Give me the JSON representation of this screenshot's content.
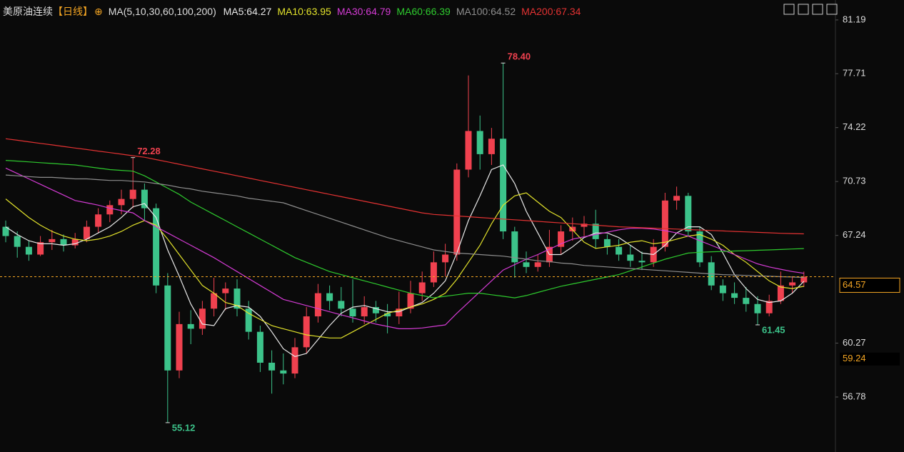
{
  "header": {
    "symbol": "美原油连续",
    "period": "【日线】",
    "indicator": "MA(5,10,30,60,100,200)"
  },
  "chart_data": {
    "type": "candlestick",
    "ylim": [
      53.22,
      82.48
    ],
    "yticks": [
      56.78,
      60.27,
      67.24,
      70.73,
      74.22,
      77.71,
      81.19
    ],
    "up_color": "#f0414f",
    "down_color": "#3cc38a",
    "open": [
      67.8,
      67.2,
      66.5,
      66.0,
      66.8,
      67.0,
      66.6,
      67.0,
      67.8,
      68.6,
      69.2,
      69.6,
      70.2,
      69.0,
      64.0,
      58.5,
      61.5,
      61.2,
      62.5,
      63.5,
      63.8,
      62.5,
      61.0,
      59.0,
      58.5,
      58.3,
      60.0,
      62.0,
      63.5,
      63.0,
      62.5,
      62.0,
      62.6,
      62.2,
      62.0,
      62.5,
      63.5,
      64.2,
      65.5,
      66.0,
      71.5,
      74.0,
      72.5,
      73.5,
      67.5,
      65.5,
      65.2,
      65.5,
      66.5,
      67.5,
      67.8,
      68.0,
      67.0,
      66.5,
      66.0,
      65.6,
      65.5,
      66.5,
      69.5,
      69.8,
      67.5,
      65.5,
      64.0,
      63.5,
      63.2,
      62.8,
      62.2,
      63.0,
      64.0,
      64.2
    ],
    "high": [
      68.2,
      67.5,
      66.9,
      67.2,
      67.6,
      67.3,
      67.4,
      68.2,
      69.0,
      69.5,
      70.2,
      72.28,
      70.6,
      69.3,
      64.8,
      62.3,
      62.4,
      63.0,
      64.5,
      64.2,
      64.4,
      63.0,
      61.4,
      59.8,
      59.6,
      60.6,
      62.6,
      64.1,
      64.0,
      63.9,
      64.4,
      63.3,
      63.0,
      62.8,
      63.6,
      64.3,
      64.9,
      66.2,
      66.7,
      71.9,
      77.6,
      75.0,
      74.2,
      78.4,
      67.8,
      66.2,
      66.0,
      67.6,
      67.9,
      68.4,
      68.5,
      68.9,
      67.3,
      67.0,
      66.6,
      66.2,
      67.0,
      70.0,
      70.4,
      70.0,
      67.8,
      65.9,
      64.4,
      64.2,
      63.9,
      63.3,
      63.4,
      64.9,
      64.6,
      64.9
    ],
    "low": [
      66.8,
      65.8,
      65.6,
      65.9,
      66.3,
      66.2,
      66.4,
      66.8,
      67.4,
      68.1,
      68.6,
      69.0,
      68.2,
      63.5,
      55.12,
      58.0,
      60.2,
      60.8,
      62.0,
      62.4,
      62.0,
      60.5,
      58.4,
      57.0,
      57.6,
      58.0,
      59.6,
      61.6,
      62.4,
      62.0,
      61.6,
      61.5,
      61.6,
      60.9,
      61.5,
      62.2,
      63.0,
      63.9,
      64.6,
      65.6,
      71.0,
      71.5,
      71.8,
      67.0,
      64.5,
      64.8,
      64.9,
      65.2,
      66.0,
      66.9,
      67.2,
      66.4,
      66.0,
      65.6,
      65.2,
      65.0,
      65.2,
      66.2,
      68.9,
      67.2,
      65.2,
      63.7,
      63.0,
      62.8,
      62.3,
      61.45,
      62.0,
      62.8,
      63.5,
      63.9
    ],
    "close": [
      67.2,
      66.5,
      66.0,
      66.8,
      67.0,
      66.6,
      67.0,
      67.8,
      68.6,
      69.2,
      69.6,
      70.2,
      69.0,
      64.0,
      58.5,
      61.5,
      61.2,
      62.5,
      63.5,
      63.8,
      62.5,
      61.0,
      59.0,
      58.5,
      58.3,
      60.0,
      62.0,
      63.5,
      63.0,
      62.5,
      62.0,
      62.6,
      62.2,
      62.0,
      62.5,
      63.5,
      64.2,
      65.5,
      66.0,
      71.5,
      74.0,
      72.5,
      73.5,
      67.5,
      65.5,
      65.2,
      65.5,
      66.5,
      67.5,
      67.8,
      68.0,
      67.0,
      66.5,
      66.0,
      65.6,
      65.5,
      66.5,
      69.5,
      69.8,
      67.5,
      65.5,
      64.0,
      63.5,
      63.2,
      62.8,
      62.2,
      63.0,
      64.0,
      64.2,
      64.57
    ],
    "series": [
      {
        "name": "MA5:64.27",
        "color": "#e8e8e8",
        "values": [
          67.8,
          67.3,
          66.9,
          66.7,
          66.7,
          66.6,
          66.7,
          67.0,
          67.4,
          67.8,
          68.4,
          69.1,
          69.3,
          68.4,
          66.3,
          64.6,
          62.8,
          61.5,
          61.4,
          62.5,
          62.7,
          62.6,
          62.0,
          61.0,
          59.9,
          59.4,
          59.6,
          60.5,
          61.4,
          62.2,
          62.6,
          62.7,
          62.5,
          62.3,
          62.3,
          62.6,
          62.9,
          63.5,
          64.3,
          66.1,
          68.2,
          69.8,
          71.5,
          71.8,
          70.6,
          68.8,
          67.4,
          66.0,
          66.0,
          66.5,
          67.1,
          67.4,
          67.4,
          67.1,
          66.6,
          66.1,
          66.0,
          66.6,
          67.4,
          67.8,
          67.8,
          67.3,
          66.1,
          64.7,
          63.8,
          63.1,
          62.9,
          63.0,
          63.5,
          64.27
        ]
      },
      {
        "name": "MA10:63.95",
        "color": "#e3e32b",
        "values": [
          69.6,
          69.0,
          68.4,
          67.9,
          67.5,
          67.2,
          67.0,
          66.9,
          67.0,
          67.2,
          67.5,
          67.9,
          68.2,
          67.9,
          67.0,
          66.0,
          65.0,
          64.0,
          63.5,
          62.9,
          62.7,
          62.2,
          61.8,
          61.4,
          61.2,
          61.0,
          60.8,
          60.7,
          60.6,
          60.6,
          61.0,
          61.4,
          61.8,
          62.2,
          62.4,
          62.6,
          62.8,
          63.1,
          63.5,
          64.4,
          65.5,
          66.6,
          68.0,
          69.2,
          69.8,
          70.0,
          69.4,
          68.8,
          68.4,
          67.6,
          66.8,
          66.4,
          66.5,
          66.6,
          66.8,
          66.9,
          66.7,
          66.8,
          67.0,
          67.2,
          67.3,
          67.0,
          66.6,
          66.0,
          65.5,
          64.9,
          64.3,
          63.9,
          63.8,
          63.95
        ]
      },
      {
        "name": "MA30:64.79",
        "color": "#d43bd4",
        "values": [
          71.6,
          71.25,
          70.9,
          70.55,
          70.2,
          69.85,
          69.5,
          69.35,
          69.2,
          69.0,
          68.85,
          68.7,
          68.2,
          67.8,
          67.4,
          67.0,
          66.6,
          66.2,
          65.8,
          65.35,
          64.9,
          64.45,
          64.0,
          63.55,
          63.1,
          62.9,
          62.7,
          62.5,
          62.3,
          62.1,
          61.9,
          61.7,
          61.5,
          61.35,
          61.2,
          61.2,
          61.25,
          61.35,
          61.45,
          62.2,
          62.9,
          63.6,
          64.3,
          65.0,
          65.35,
          65.7,
          66.0,
          66.35,
          66.7,
          67.0,
          67.15,
          67.3,
          67.45,
          67.6,
          67.7,
          67.7,
          67.65,
          67.55,
          67.4,
          67.2,
          66.9,
          66.6,
          66.3,
          66.0,
          65.7,
          65.4,
          65.2,
          65.05,
          64.9,
          64.79
        ]
      },
      {
        "name": "MA60:66.39",
        "color": "#2ecb2e",
        "values": [
          72.1,
          72.05,
          72.0,
          71.95,
          71.9,
          71.85,
          71.8,
          71.7,
          71.6,
          71.5,
          71.45,
          71.4,
          71.1,
          70.7,
          70.3,
          69.9,
          69.4,
          69.0,
          68.6,
          68.2,
          67.8,
          67.4,
          67.0,
          66.6,
          66.2,
          65.8,
          65.5,
          65.2,
          64.9,
          64.7,
          64.5,
          64.3,
          64.1,
          63.9,
          63.7,
          63.5,
          63.35,
          63.2,
          63.3,
          63.4,
          63.5,
          63.5,
          63.4,
          63.3,
          63.2,
          63.35,
          63.55,
          63.75,
          63.95,
          64.1,
          64.25,
          64.4,
          64.55,
          64.7,
          64.95,
          65.2,
          65.45,
          65.7,
          65.9,
          66.1,
          66.15,
          66.18,
          66.2,
          66.23,
          66.25,
          66.28,
          66.3,
          66.33,
          66.36,
          66.39
        ]
      },
      {
        "name": "MA100:64.52",
        "color": "#8e8e8e",
        "values": [
          71.15,
          71.1,
          71.05,
          71.0,
          71.0,
          70.95,
          70.9,
          70.9,
          70.85,
          70.8,
          70.8,
          70.75,
          70.7,
          70.6,
          70.5,
          70.35,
          70.25,
          70.1,
          70.0,
          69.9,
          69.8,
          69.65,
          69.55,
          69.45,
          69.35,
          69.1,
          68.85,
          68.6,
          68.35,
          68.1,
          67.85,
          67.6,
          67.35,
          67.1,
          66.9,
          66.7,
          66.5,
          66.3,
          66.2,
          66.1,
          66.05,
          66.0,
          65.95,
          65.9,
          65.8,
          65.7,
          65.6,
          65.55,
          65.45,
          65.4,
          65.3,
          65.25,
          65.2,
          65.15,
          65.1,
          65.05,
          65.0,
          64.95,
          64.9,
          64.85,
          64.8,
          64.75,
          64.7,
          64.68,
          64.65,
          64.62,
          64.6,
          64.57,
          64.55,
          64.52
        ]
      },
      {
        "name": "MA200:67.34",
        "color": "#e33232",
        "values": [
          73.5,
          73.4,
          73.3,
          73.2,
          73.1,
          73.0,
          72.9,
          72.8,
          72.7,
          72.6,
          72.5,
          72.4,
          72.3,
          72.15,
          72.0,
          71.85,
          71.7,
          71.55,
          71.4,
          71.25,
          71.1,
          70.95,
          70.8,
          70.65,
          70.5,
          70.35,
          70.2,
          70.05,
          69.9,
          69.75,
          69.6,
          69.45,
          69.3,
          69.15,
          69.0,
          68.85,
          68.7,
          68.6,
          68.55,
          68.5,
          68.45,
          68.4,
          68.35,
          68.3,
          68.25,
          68.2,
          68.15,
          68.1,
          68.05,
          68.0,
          67.95,
          67.9,
          67.85,
          67.8,
          67.77,
          67.74,
          67.71,
          67.68,
          67.65,
          67.62,
          67.59,
          67.56,
          67.53,
          67.5,
          67.47,
          67.44,
          67.41,
          67.38,
          67.36,
          67.34
        ]
      }
    ],
    "annotations": [
      {
        "label": "78.40",
        "value": 78.4,
        "color": "#f0414f"
      },
      {
        "label": "72.28",
        "value": 72.28,
        "color": "#f0414f"
      },
      {
        "label": "55.12",
        "value": 55.12,
        "color": "#3cc38a"
      },
      {
        "label": "61.45",
        "value": 61.45,
        "color": "#3cc38a"
      }
    ],
    "price_tags": [
      64.57,
      59.24
    ]
  }
}
